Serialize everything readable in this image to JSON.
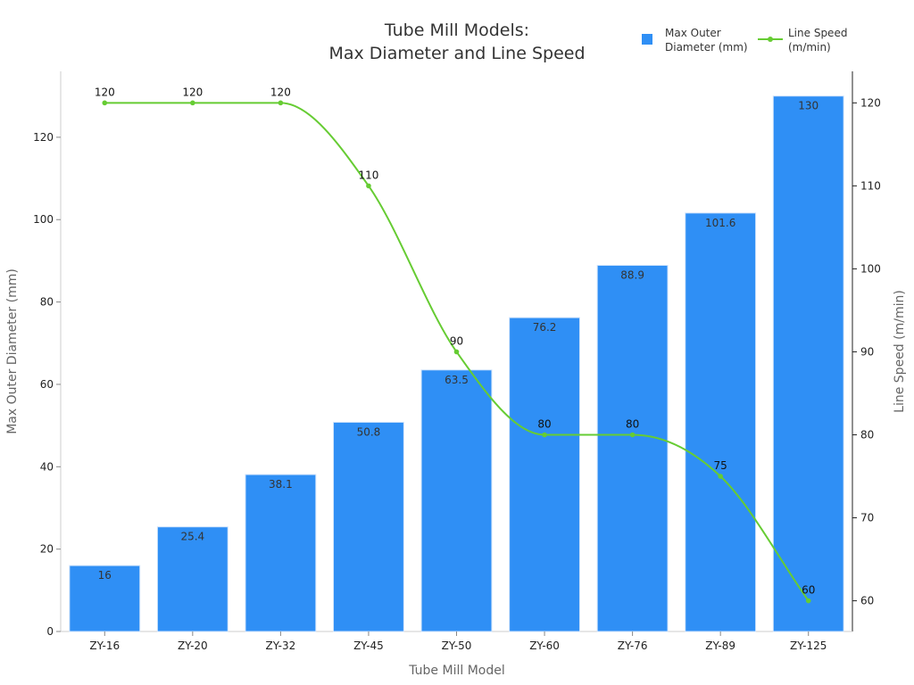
{
  "chart_data": {
    "type": "bar",
    "title_lines": [
      "Tube Mill Models:",
      "Max Diameter and Line Speed"
    ],
    "xlabel": "Tube Mill Model",
    "ylabel_left": "Max Outer Diameter (mm)",
    "ylabel_right": "Line Speed (m/min)",
    "categories": [
      "ZY-16",
      "ZY-20",
      "ZY-32",
      "ZY-45",
      "ZY-50",
      "ZY-60",
      "ZY-76",
      "ZY-89",
      "ZY-125"
    ],
    "ylim_left": [
      0,
      136
    ],
    "yticks_left": [
      0,
      20,
      40,
      60,
      80,
      100,
      120
    ],
    "ylim_right": [
      56.3,
      123.8
    ],
    "yticks_right": [
      60,
      70,
      80,
      90,
      100,
      110,
      120
    ],
    "series": [
      {
        "type": "bar",
        "axis": "left",
        "values": [
          16,
          25.4,
          38.1,
          50.8,
          63.5,
          76.2,
          88.9,
          101.6,
          130
        ],
        "labels": [
          "16",
          "25.4",
          "38.1",
          "50.8",
          "63.5",
          "76.2",
          "88.9",
          "101.6",
          "130"
        ],
        "color": "#2f8ff5"
      },
      {
        "type": "line",
        "axis": "right",
        "values": [
          120,
          120,
          120,
          110,
          90,
          80,
          80,
          75,
          60
        ],
        "labels": [
          "120",
          "120",
          "120",
          "110",
          "90",
          "80",
          "80",
          "75",
          "60"
        ],
        "color": "#66cc33",
        "smooth": true
      }
    ],
    "legend": {
      "placement": "top-right",
      "items": [
        {
          "lines": [
            "Max Outer",
            "Diameter (mm)"
          ],
          "marker": "square",
          "color": "#2f8ff5"
        },
        {
          "lines": [
            "Line Speed",
            "(m/min)"
          ],
          "marker": "line",
          "color": "#66cc33"
        }
      ]
    },
    "grid": false
  }
}
